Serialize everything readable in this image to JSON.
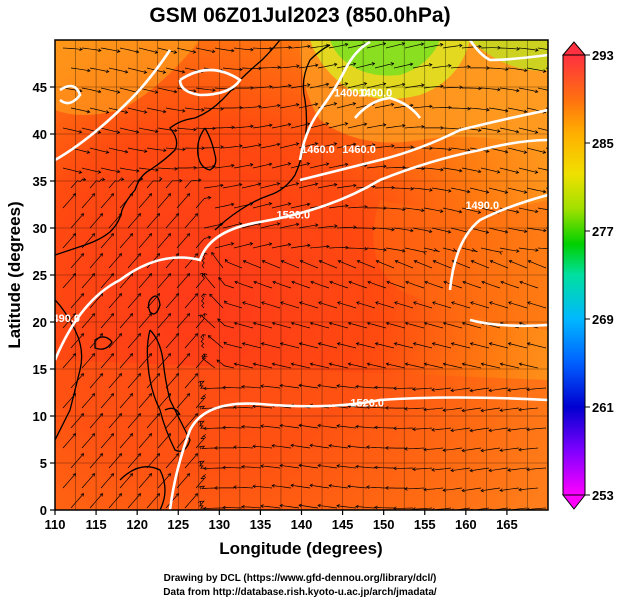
{
  "title": "GSM 06Z01Jul2023 (850.0hPa)",
  "xlabel": "Longitude (degrees)",
  "ylabel": "Latitude (degrees)",
  "footer_line1": "Drawing by DCL (https://www.gfd-dennou.org/library/dcl/)",
  "footer_line2": "Data from http://database.rish.kyoto-u.ac.jp/arch/jmadata/",
  "map": {
    "lon_range": [
      110,
      170
    ],
    "lat_range": [
      0,
      50
    ],
    "x_ticks": [
      "110",
      "115",
      "120",
      "125",
      "130",
      "135",
      "140",
      "145",
      "150",
      "155",
      "160",
      "165"
    ],
    "y_ticks": [
      "0",
      "5",
      "10",
      "15",
      "20",
      "25",
      "30",
      "35",
      "40",
      "45"
    ],
    "field": "temperature (K) shaded, geopotential height contours, streamlines",
    "contour_labels": [
      {
        "text": "1520.0",
        "lon": 139,
        "lat": 31
      },
      {
        "text": "1520.0",
        "lon": 148,
        "lat": 11
      },
      {
        "text": "1490.0",
        "lon": 111,
        "lat": 20
      },
      {
        "text": "1460.0",
        "lon": 142,
        "lat": 38
      },
      {
        "text": "1460.0",
        "lon": 147,
        "lat": 38
      },
      {
        "text": "1400.0",
        "lon": 149,
        "lat": 44
      },
      {
        "text": "1400.0",
        "lon": 146,
        "lat": 44
      },
      {
        "text": "1490.0",
        "lon": 162,
        "lat": 32
      }
    ]
  },
  "colorbar": {
    "labels": [
      "293",
      "285",
      "277",
      "269",
      "261",
      "253"
    ],
    "min": 253,
    "max": 293,
    "colors": [
      "#ff00ff",
      "#6a00ff",
      "#0000e0",
      "#0050ff",
      "#00b0ff",
      "#00e0c0",
      "#00d000",
      "#80e000",
      "#e0e000",
      "#ffb000",
      "#ff6000",
      "#ff3000",
      "#ff4060"
    ]
  }
}
